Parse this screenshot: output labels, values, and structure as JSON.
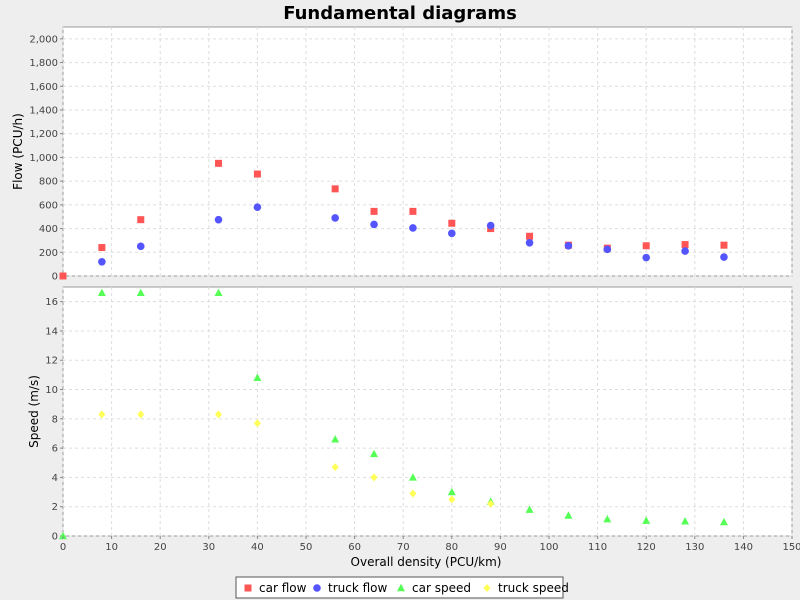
{
  "chart_data": {
    "type": "scatter",
    "title": "Fundamental diagrams",
    "xlabel": "Overall density (PCU/km)",
    "xlim": [
      0,
      150
    ],
    "xticks": [
      0,
      10,
      20,
      30,
      40,
      50,
      60,
      70,
      80,
      90,
      100,
      110,
      120,
      130,
      140,
      150
    ],
    "grid": true,
    "legend_position": "bottom",
    "panels": [
      {
        "ylabel": "Flow (PCU/h)",
        "ylim": [
          0,
          2100
        ],
        "yticks": [
          0,
          200,
          400,
          600,
          800,
          1000,
          1200,
          1400,
          1600,
          1800,
          2000
        ],
        "ytick_labels": [
          "0",
          "200",
          "400",
          "600",
          "800",
          "1,000",
          "1,200",
          "1,400",
          "1,600",
          "1,800",
          "2,000"
        ],
        "series": [
          {
            "name": "car flow",
            "marker": "square",
            "color": "#ff5555",
            "x": [
              0,
              8,
              16,
              32,
              40,
              56,
              64,
              72,
              80,
              88,
              96,
              104,
              112,
              120,
              128,
              136
            ],
            "y": [
              0,
              240,
              475,
              950,
              860,
              735,
              545,
              545,
              445,
              400,
              335,
              260,
              235,
              255,
              265,
              260
            ]
          },
          {
            "name": "truck flow",
            "marker": "circle",
            "color": "#5555ff",
            "x": [
              8,
              16,
              32,
              40,
              56,
              64,
              72,
              80,
              88,
              96,
              104,
              112,
              120,
              128,
              136
            ],
            "y": [
              120,
              250,
              475,
              580,
              490,
              435,
              405,
              360,
              425,
              280,
              255,
              225,
              155,
              210,
              160
            ]
          }
        ]
      },
      {
        "ylabel": "Speed (m/s)",
        "ylim": [
          0,
          17
        ],
        "yticks": [
          0,
          2,
          4,
          6,
          8,
          10,
          12,
          14,
          16
        ],
        "ytick_labels": [
          "0",
          "2",
          "4",
          "6",
          "8",
          "10",
          "12",
          "14",
          "16"
        ],
        "series": [
          {
            "name": "car speed",
            "marker": "triangle",
            "color": "#55ff55",
            "x": [
              0,
              8,
              16,
              32,
              40,
              56,
              64,
              72,
              80,
              88,
              96,
              104,
              112,
              120,
              128,
              136
            ],
            "y": [
              0,
              16.6,
              16.6,
              16.6,
              10.8,
              6.6,
              5.6,
              4.0,
              3.0,
              2.35,
              1.8,
              1.4,
              1.15,
              1.05,
              1.0,
              0.95
            ]
          },
          {
            "name": "truck speed",
            "marker": "diamond",
            "color": "#ffff55",
            "x": [
              8,
              16,
              32,
              40,
              56,
              64,
              72,
              80,
              88
            ],
            "y": [
              8.3,
              8.3,
              8.3,
              7.7,
              4.7,
              4.0,
              2.9,
              2.5,
              2.2
            ]
          }
        ]
      }
    ]
  }
}
